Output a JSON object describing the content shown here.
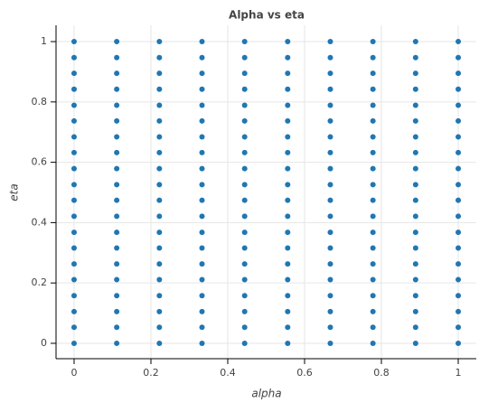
{
  "chart_data": {
    "type": "scatter",
    "title": "Alpha vs eta",
    "x_label": "alpha",
    "y_label": "eta",
    "color": "#1f77b4",
    "grid": true,
    "xlim": [
      -0.047,
      1.047
    ],
    "ylim": [
      -0.051,
      1.054
    ],
    "xticks": [
      0,
      0.2,
      0.4,
      0.6,
      0.8,
      1
    ],
    "yticks": [
      0,
      0.2,
      0.4,
      0.6,
      0.8,
      1
    ],
    "x": [
      0,
      0,
      0,
      0,
      0,
      0,
      0,
      0,
      0,
      0,
      0,
      0,
      0,
      0,
      0,
      0,
      0,
      0,
      0,
      0,
      0.111,
      0.111,
      0.111,
      0.111,
      0.111,
      0.111,
      0.111,
      0.111,
      0.111,
      0.111,
      0.111,
      0.111,
      0.111,
      0.111,
      0.111,
      0.111,
      0.111,
      0.111,
      0.111,
      0.111,
      0.222,
      0.222,
      0.222,
      0.222,
      0.222,
      0.222,
      0.222,
      0.222,
      0.222,
      0.222,
      0.222,
      0.222,
      0.222,
      0.222,
      0.222,
      0.222,
      0.222,
      0.222,
      0.222,
      0.222,
      0.333,
      0.333,
      0.333,
      0.333,
      0.333,
      0.333,
      0.333,
      0.333,
      0.333,
      0.333,
      0.333,
      0.333,
      0.333,
      0.333,
      0.333,
      0.333,
      0.333,
      0.333,
      0.333,
      0.333,
      0.444,
      0.444,
      0.444,
      0.444,
      0.444,
      0.444,
      0.444,
      0.444,
      0.444,
      0.444,
      0.444,
      0.444,
      0.444,
      0.444,
      0.444,
      0.444,
      0.444,
      0.444,
      0.444,
      0.444,
      0.556,
      0.556,
      0.556,
      0.556,
      0.556,
      0.556,
      0.556,
      0.556,
      0.556,
      0.556,
      0.556,
      0.556,
      0.556,
      0.556,
      0.556,
      0.556,
      0.556,
      0.556,
      0.556,
      0.556,
      0.667,
      0.667,
      0.667,
      0.667,
      0.667,
      0.667,
      0.667,
      0.667,
      0.667,
      0.667,
      0.667,
      0.667,
      0.667,
      0.667,
      0.667,
      0.667,
      0.667,
      0.667,
      0.667,
      0.667,
      0.778,
      0.778,
      0.778,
      0.778,
      0.778,
      0.778,
      0.778,
      0.778,
      0.778,
      0.778,
      0.778,
      0.778,
      0.778,
      0.778,
      0.778,
      0.778,
      0.778,
      0.778,
      0.778,
      0.778,
      0.889,
      0.889,
      0.889,
      0.889,
      0.889,
      0.889,
      0.889,
      0.889,
      0.889,
      0.889,
      0.889,
      0.889,
      0.889,
      0.889,
      0.889,
      0.889,
      0.889,
      0.889,
      0.889,
      0.889,
      1,
      1,
      1,
      1,
      1,
      1,
      1,
      1,
      1,
      1,
      1,
      1,
      1,
      1,
      1,
      1,
      1,
      1,
      1,
      1
    ],
    "values": [
      0,
      0.053,
      0.105,
      0.158,
      0.211,
      0.263,
      0.316,
      0.368,
      0.421,
      0.474,
      0.526,
      0.579,
      0.632,
      0.684,
      0.737,
      0.789,
      0.842,
      0.895,
      0.947,
      1,
      0,
      0.053,
      0.105,
      0.158,
      0.211,
      0.263,
      0.316,
      0.368,
      0.421,
      0.474,
      0.526,
      0.579,
      0.632,
      0.684,
      0.737,
      0.789,
      0.842,
      0.895,
      0.947,
      1,
      0,
      0.053,
      0.105,
      0.158,
      0.211,
      0.263,
      0.316,
      0.368,
      0.421,
      0.474,
      0.526,
      0.579,
      0.632,
      0.684,
      0.737,
      0.789,
      0.842,
      0.895,
      0.947,
      1,
      0,
      0.053,
      0.105,
      0.158,
      0.211,
      0.263,
      0.316,
      0.368,
      0.421,
      0.474,
      0.526,
      0.579,
      0.632,
      0.684,
      0.737,
      0.789,
      0.842,
      0.895,
      0.947,
      1,
      0,
      0.053,
      0.105,
      0.158,
      0.211,
      0.263,
      0.316,
      0.368,
      0.421,
      0.474,
      0.526,
      0.579,
      0.632,
      0.684,
      0.737,
      0.789,
      0.842,
      0.895,
      0.947,
      1,
      0,
      0.053,
      0.105,
      0.158,
      0.211,
      0.263,
      0.316,
      0.368,
      0.421,
      0.474,
      0.526,
      0.579,
      0.632,
      0.684,
      0.737,
      0.789,
      0.842,
      0.895,
      0.947,
      1,
      0,
      0.053,
      0.105,
      0.158,
      0.211,
      0.263,
      0.316,
      0.368,
      0.421,
      0.474,
      0.526,
      0.579,
      0.632,
      0.684,
      0.737,
      0.789,
      0.842,
      0.895,
      0.947,
      1,
      0,
      0.053,
      0.105,
      0.158,
      0.211,
      0.263,
      0.316,
      0.368,
      0.421,
      0.474,
      0.526,
      0.579,
      0.632,
      0.684,
      0.737,
      0.789,
      0.842,
      0.895,
      0.947,
      1,
      0,
      0.053,
      0.105,
      0.158,
      0.211,
      0.263,
      0.316,
      0.368,
      0.421,
      0.474,
      0.526,
      0.579,
      0.632,
      0.684,
      0.737,
      0.789,
      0.842,
      0.895,
      0.947,
      1,
      0,
      0.053,
      0.105,
      0.158,
      0.211,
      0.263,
      0.316,
      0.368,
      0.421,
      0.474,
      0.526,
      0.579,
      0.632,
      0.684,
      0.737,
      0.789,
      0.842,
      0.895,
      0.947,
      1
    ]
  }
}
